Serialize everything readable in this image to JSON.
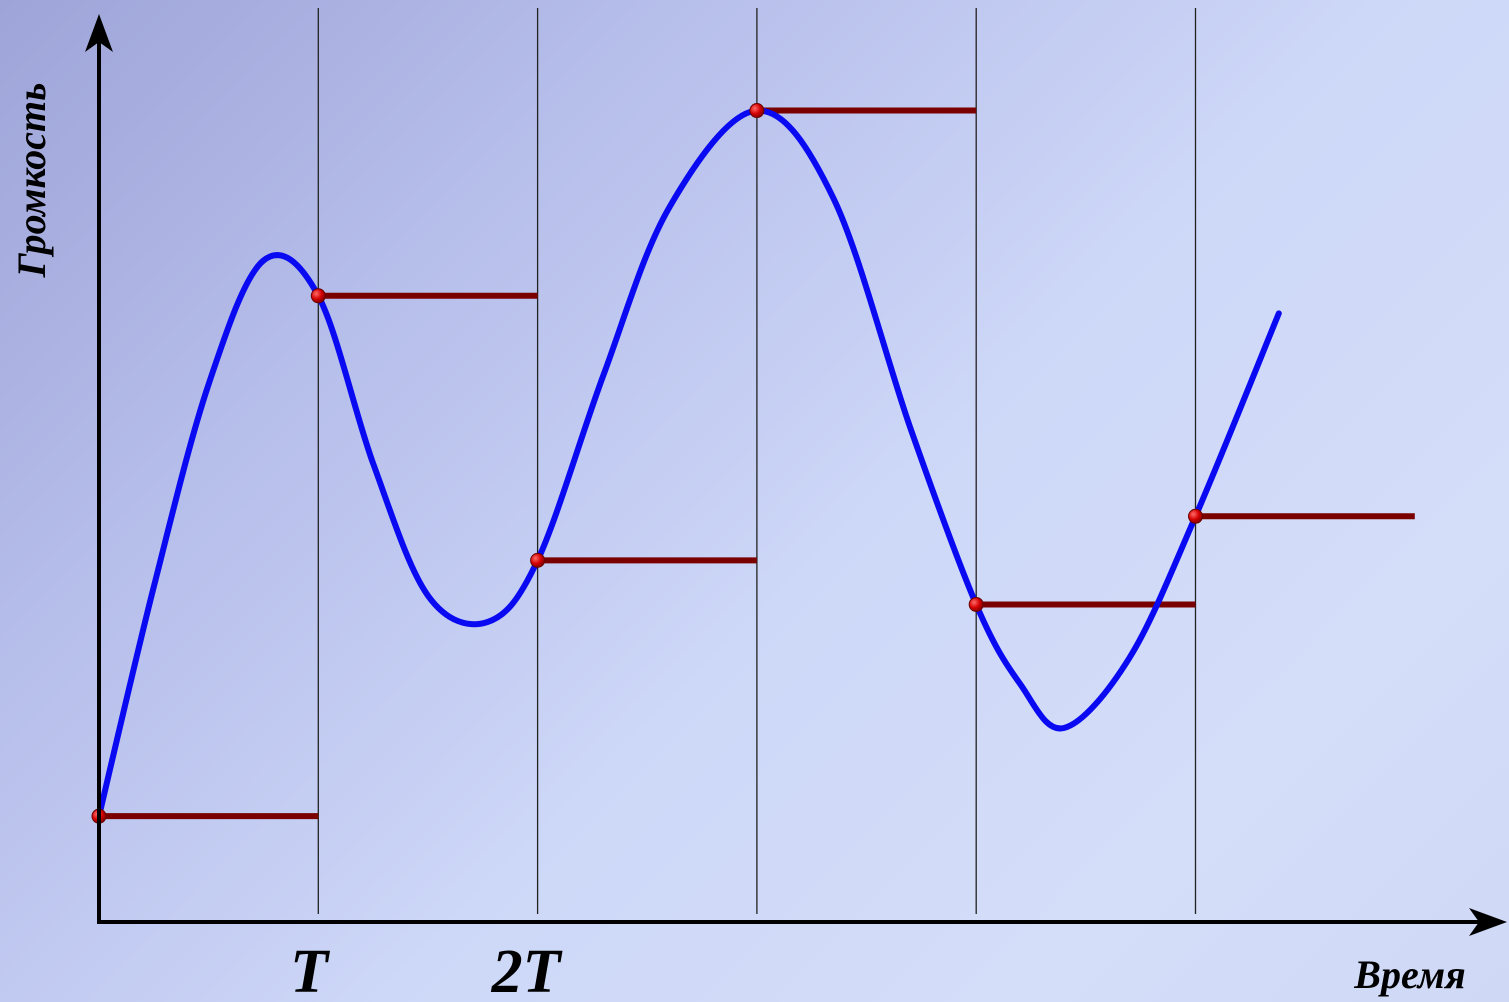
{
  "diagram": {
    "y_axis_label": "Громкость",
    "x_axis_label": "Время",
    "tick_labels": [
      "T",
      "2T"
    ],
    "colors": {
      "signal": "#0a0af2",
      "hold": "#7a0000",
      "sample_point": "#d40000",
      "axis": "#000000",
      "grid": "#222222"
    }
  },
  "chart_data": {
    "type": "line",
    "title": "",
    "xlabel": "Время",
    "ylabel": "Громкость",
    "period_ticks": [
      "T",
      "2T"
    ],
    "sampling_interval_count": 6,
    "series": [
      {
        "name": "",
        "kind": "continuous-signal",
        "x": [
          0,
          0.25,
          0.5,
          0.75,
          1,
          1.25,
          1.5,
          1.77,
          2,
          2.3,
          2.6,
          3,
          3.35,
          3.7,
          4,
          4.2,
          4.4,
          4.7,
          5,
          5.38
        ],
        "y": [
          0.12,
          0.38,
          0.61,
          0.75,
          0.71,
          0.52,
          0.37,
          0.34,
          0.41,
          0.62,
          0.81,
          0.92,
          0.82,
          0.56,
          0.36,
          0.27,
          0.22,
          0.3,
          0.46,
          0.69
        ]
      },
      {
        "name": "",
        "kind": "sample-and-hold",
        "x": [
          0,
          1,
          2,
          3,
          4,
          5
        ],
        "y": [
          0.12,
          0.71,
          0.41,
          0.92,
          0.36,
          0.46
        ]
      }
    ],
    "xlim": [
      0,
      6.4
    ],
    "ylim": [
      0,
      1
    ],
    "grid": "vertical lines at each sampling interval"
  }
}
